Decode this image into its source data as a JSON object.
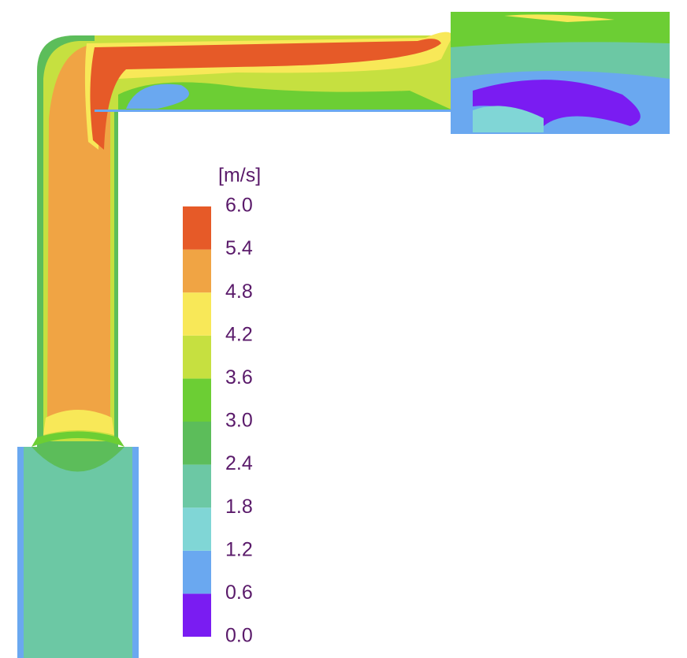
{
  "colorbar": {
    "unit": "[m/s]",
    "ticks": [
      {
        "value": 0,
        "label": "0.0"
      },
      {
        "value": 0.6,
        "label": "0.6"
      },
      {
        "value": 1.2,
        "label": "1.2"
      },
      {
        "value": 1.8,
        "label": "1.8"
      },
      {
        "value": 2.4,
        "label": "2.4"
      },
      {
        "value": 3,
        "label": "3.0"
      },
      {
        "value": 3.6,
        "label": "3.6"
      },
      {
        "value": 4.2,
        "label": "4.2"
      },
      {
        "value": 4.8,
        "label": "4.8"
      },
      {
        "value": 5.4,
        "label": "5.4"
      },
      {
        "value": 6,
        "label": "6.0"
      }
    ],
    "colors": [
      "#7a1cf2",
      "#6aa8f0",
      "#80d6d6",
      "#6cc8a4",
      "#5cbd5a",
      "#6cce34",
      "#c6e040",
      "#f8e858",
      "#f0a444",
      "#e65a28"
    ]
  }
}
